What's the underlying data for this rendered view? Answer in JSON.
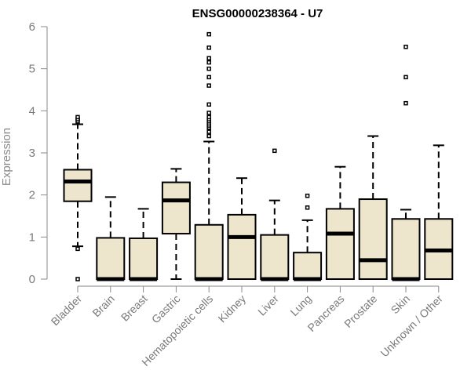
{
  "chart_data": {
    "type": "box",
    "title": "ENSG00000238364 - U7",
    "ylabel": "Expression",
    "xlabel": "",
    "ylim": [
      0,
      6
    ],
    "yticks": [
      0,
      1,
      2,
      3,
      4,
      5,
      6
    ],
    "grid": false,
    "box_fill": "#ede6cd",
    "categories": [
      "Bladder",
      "Brain",
      "Breast",
      "Gastric",
      "Hematopoietic cells",
      "Kidney",
      "Liver",
      "Lung",
      "Pancreas",
      "Prostate",
      "Skin",
      "Unknown / Other"
    ],
    "boxes": [
      {
        "q1": 1.85,
        "median": 2.32,
        "q3": 2.6,
        "whisker_low": 0.78,
        "whisker_high": 3.68,
        "outliers": [
          3.75,
          3.8,
          3.85,
          0.72,
          0.0
        ]
      },
      {
        "q1": 0.0,
        "median": 0.0,
        "q3": 0.98,
        "whisker_low": 0.0,
        "whisker_high": 1.95,
        "outliers": []
      },
      {
        "q1": 0.0,
        "median": 0.0,
        "q3": 0.97,
        "whisker_low": 0.0,
        "whisker_high": 1.67,
        "outliers": []
      },
      {
        "q1": 1.08,
        "median": 1.87,
        "q3": 2.3,
        "whisker_low": 0.0,
        "whisker_high": 2.62,
        "outliers": []
      },
      {
        "q1": 0.0,
        "median": 0.0,
        "q3": 1.29,
        "whisker_low": 0.0,
        "whisker_high": 3.27,
        "outliers": [
          3.4,
          3.5,
          3.6,
          3.65,
          3.7,
          3.75,
          3.8,
          3.85,
          3.95,
          4.15,
          4.6,
          4.8,
          5.0,
          5.15,
          5.25,
          5.5,
          5.82
        ]
      },
      {
        "q1": 0.0,
        "median": 1.0,
        "q3": 1.53,
        "whisker_low": 0.0,
        "whisker_high": 2.4,
        "outliers": []
      },
      {
        "q1": 0.0,
        "median": 0.0,
        "q3": 1.05,
        "whisker_low": 0.0,
        "whisker_high": 1.87,
        "outliers": [
          3.05
        ]
      },
      {
        "q1": 0.0,
        "median": 0.0,
        "q3": 0.63,
        "whisker_low": 0.0,
        "whisker_high": 1.4,
        "outliers": [
          1.7,
          1.98
        ]
      },
      {
        "q1": 0.0,
        "median": 1.08,
        "q3": 1.67,
        "whisker_low": 0.0,
        "whisker_high": 2.67,
        "outliers": []
      },
      {
        "q1": 0.0,
        "median": 0.45,
        "q3": 1.9,
        "whisker_low": 0.0,
        "whisker_high": 3.4,
        "outliers": []
      },
      {
        "q1": 0.0,
        "median": 0.0,
        "q3": 1.43,
        "whisker_low": 0.0,
        "whisker_high": 1.65,
        "outliers": [
          4.18,
          4.8,
          5.52
        ]
      },
      {
        "q1": 0.0,
        "median": 0.68,
        "q3": 1.43,
        "whisker_low": 0.0,
        "whisker_high": 3.18,
        "outliers": []
      }
    ]
  }
}
